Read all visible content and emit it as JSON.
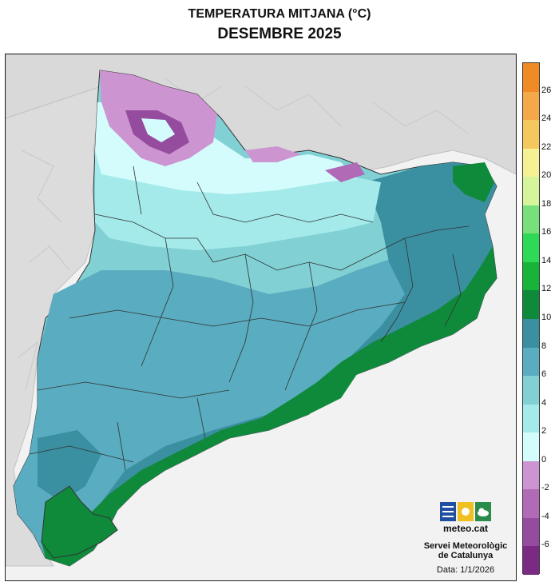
{
  "header": {
    "title": "TEMPERATURA MITJANA (°C)",
    "subtitle": "DESEMBRE 2025"
  },
  "legend": {
    "unit": "°C",
    "ticks": [
      "26",
      "24",
      "22",
      "20",
      "18",
      "16",
      "14",
      "12",
      "10",
      "8",
      "6",
      "4",
      "2",
      "0",
      "-2",
      "-4",
      "-6"
    ],
    "bands": [
      {
        "min": 26,
        "max": 28,
        "color": "#f08a24"
      },
      {
        "min": 24,
        "max": 26,
        "color": "#f3a84a"
      },
      {
        "min": 22,
        "max": 24,
        "color": "#f4c85d"
      },
      {
        "min": 20,
        "max": 22,
        "color": "#f6f192"
      },
      {
        "min": 18,
        "max": 20,
        "color": "#d6f59a"
      },
      {
        "min": 16,
        "max": 18,
        "color": "#78e07a"
      },
      {
        "min": 14,
        "max": 16,
        "color": "#2ed957"
      },
      {
        "min": 12,
        "max": 14,
        "color": "#18b43a"
      },
      {
        "min": 10,
        "max": 12,
        "color": "#0e8a3a"
      },
      {
        "min": 8,
        "max": 10,
        "color": "#3a8fa0"
      },
      {
        "min": 6,
        "max": 8,
        "color": "#5aacc0"
      },
      {
        "min": 4,
        "max": 6,
        "color": "#80d0d4"
      },
      {
        "min": 2,
        "max": 4,
        "color": "#a5eaea"
      },
      {
        "min": 0,
        "max": 2,
        "color": "#d4fcfc"
      },
      {
        "min": -2,
        "max": 0,
        "color": "#cc94d0"
      },
      {
        "min": -4,
        "max": -2,
        "color": "#b06ab6"
      },
      {
        "min": -6,
        "max": -4,
        "color": "#954c9e"
      },
      {
        "min": -8,
        "max": -6,
        "color": "#7a2a82"
      }
    ]
  },
  "logo": {
    "brand": "meteo.cat",
    "icons": [
      "bars-icon",
      "sun-icon",
      "cloud-icon"
    ]
  },
  "footer": {
    "organization_line1": "Servei Meteorològic",
    "organization_line2": "de Catalunya",
    "date": "Data: 1/1/2026"
  }
}
